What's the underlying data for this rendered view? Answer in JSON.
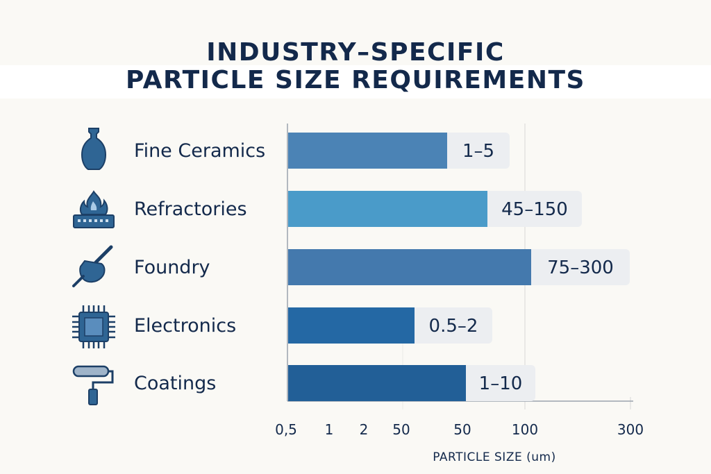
{
  "title_line1": "INDUSTRY–SPECIFIC",
  "title_line2": "PARTICLE SIZE REQUIREMENTS",
  "chart_data": {
    "type": "bar",
    "orientation": "horizontal",
    "title": "INDUSTRY–SPECIFIC PARTICLE SIZE REQUIREMENTS",
    "xlabel": "PARTICLE SIZE (um)",
    "ylabel": "",
    "x_ticks": [
      "0,5",
      "1",
      "2",
      "50",
      "50",
      "100",
      "300"
    ],
    "categories": [
      "Fine Ceramics",
      "Refractories",
      "Foundry",
      "Electronics",
      "Coatings"
    ],
    "value_labels": [
      "1–5",
      "45–150",
      "75–300",
      "0.5–2",
      "1–10"
    ],
    "ranges": [
      [
        1,
        5
      ],
      [
        45,
        150
      ],
      [
        75,
        300
      ],
      [
        0.5,
        2
      ],
      [
        1,
        10
      ]
    ],
    "grid": "vertical at 100 and 300",
    "legend": "none",
    "colors": [
      "#4b83b5",
      "#4a9bc9",
      "#4479ad",
      "#2468a4",
      "#225f97"
    ],
    "icons": [
      "vase-icon",
      "furnace-icon",
      "foundry-ladle-icon",
      "chip-icon",
      "paint-roller-icon"
    ]
  }
}
